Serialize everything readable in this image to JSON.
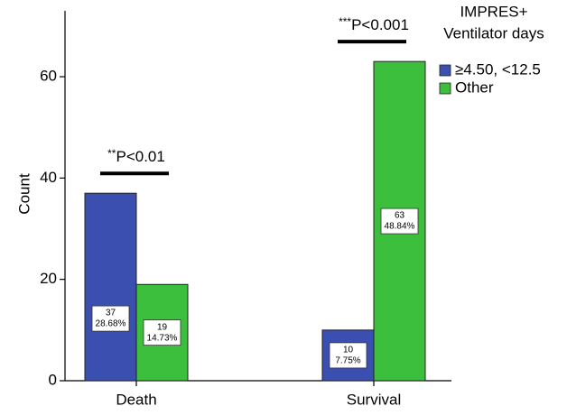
{
  "chart_data": {
    "type": "bar",
    "y_label": "Count",
    "categories": [
      "Death",
      "Survival"
    ],
    "series": [
      {
        "name": "≥4.50, <12.5",
        "color": "#3a4fb0",
        "values": [
          37,
          10
        ],
        "percent_labels": [
          "28.68%",
          "7.75%"
        ]
      },
      {
        "name": "Other",
        "color": "#3cbf3c",
        "values": [
          19,
          63
        ],
        "percent_labels": [
          "14.73%",
          "48.84%"
        ]
      }
    ],
    "legend_title": [
      "IMPRES+",
      "Ventilator days"
    ],
    "legend_position": "upper right",
    "annotations": [
      {
        "stars": "**",
        "text": "P<0.01"
      },
      {
        "stars": "***",
        "text": "P<0.001"
      }
    ],
    "ylim": [
      0,
      73
    ],
    "yticks": [
      0,
      20,
      40,
      60
    ]
  }
}
